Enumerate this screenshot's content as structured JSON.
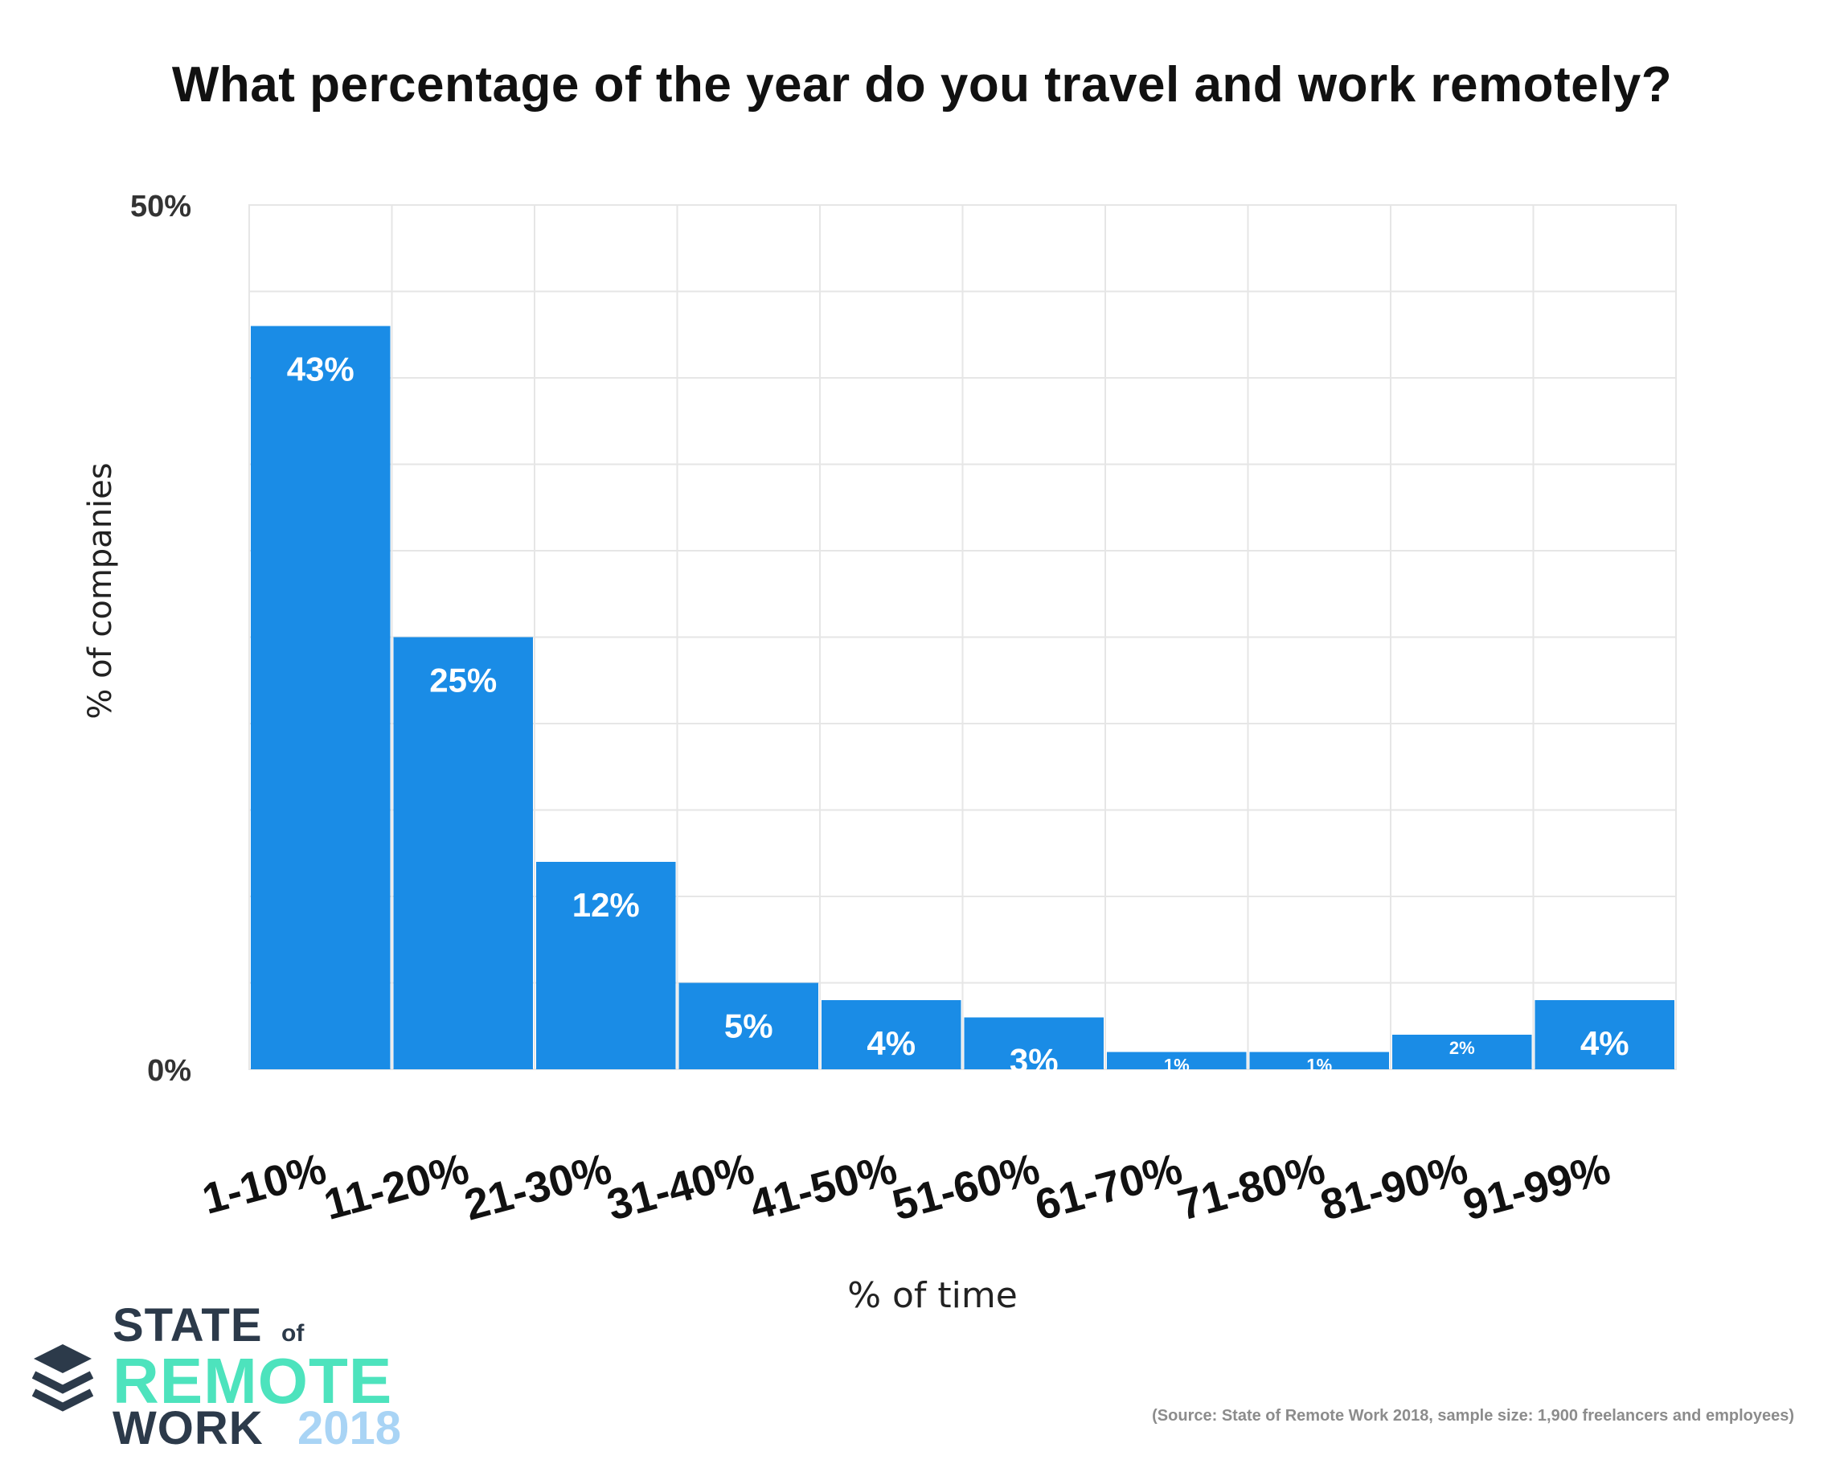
{
  "title": "What percentage of the year do you travel and work remotely?",
  "source": "(Source: State of Remote Work 2018, sample size: 1,900 freelancers and employees)",
  "logo": {
    "line1": "STATE",
    "of": "of",
    "line2": "REMOTE",
    "line3": "WORK",
    "year": "2018",
    "icon": "stacked-layers-icon"
  },
  "colors": {
    "bar": "#1a8ce6",
    "grid": "#e6e6e6",
    "tick": "#333333",
    "label": "#ffffff"
  },
  "chart_data": {
    "type": "bar",
    "title": "What percentage of the year do you travel and work remotely?",
    "xlabel": "% of time",
    "ylabel": "% of companies",
    "categories": [
      "1-10%",
      "11-20%",
      "21-30%",
      "31-40%",
      "41-50%",
      "51-60%",
      "61-70%",
      "71-80%",
      "81-90%",
      "91-99%"
    ],
    "values": [
      43,
      25,
      12,
      5,
      4,
      3,
      1,
      1,
      2,
      4
    ],
    "data_labels": [
      "43%",
      "25%",
      "12%",
      "5%",
      "4%",
      "3%",
      "1%",
      "1%",
      "2%",
      "4%"
    ],
    "ylim": [
      0,
      50
    ],
    "y_ticks": [
      {
        "value": 0,
        "label": "0%"
      },
      {
        "value": 50,
        "label": "50%"
      }
    ],
    "grid": true,
    "legend": "none"
  }
}
